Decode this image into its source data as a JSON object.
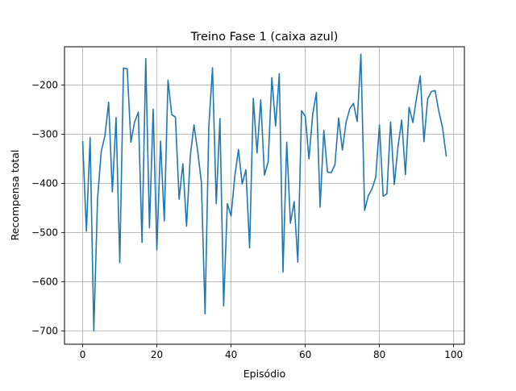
{
  "chart_data": {
    "type": "line",
    "title": "Treino Fase 1 (caixa azul)",
    "xlabel": "Episódio",
    "ylabel": "Recompensa total",
    "xlim": [
      -4.9,
      102.9
    ],
    "ylim": [
      -727,
      -122
    ],
    "xticks": [
      0,
      20,
      40,
      60,
      80,
      100
    ],
    "xtick_labels": [
      "0",
      "20",
      "40",
      "60",
      "80",
      "100"
    ],
    "yticks": [
      -700,
      -600,
      -500,
      -400,
      -300,
      -200
    ],
    "ytick_labels": [
      "−700",
      "−600",
      "−500",
      "−400",
      "−300",
      "−200"
    ],
    "grid": true,
    "line_color": "#1f77b4",
    "series": [
      {
        "x": [
          0,
          1,
          2,
          3,
          4,
          5,
          6,
          7,
          8,
          9,
          10,
          11,
          12,
          13,
          14,
          15,
          16,
          17,
          18,
          19,
          20,
          21,
          22,
          23,
          24,
          25,
          26,
          27,
          28,
          29,
          30,
          31,
          32,
          33,
          34,
          35,
          36,
          37,
          38,
          39,
          40,
          41,
          42,
          43,
          44,
          45,
          46,
          47,
          48,
          49,
          50,
          51,
          52,
          53,
          54,
          55,
          56,
          57,
          58,
          59,
          60,
          61,
          62,
          63,
          64,
          65,
          66,
          67,
          68,
          69,
          70,
          71,
          72,
          73,
          74,
          75,
          76,
          77,
          78,
          79,
          80,
          81,
          82,
          83,
          84,
          85,
          86,
          87,
          88,
          89,
          90,
          91,
          92,
          93,
          94,
          95,
          96,
          97,
          98
        ],
        "values": [
          -315,
          -497,
          -307,
          -700,
          -432,
          -335,
          -303,
          -235,
          -417,
          -266,
          -561,
          -165,
          -167,
          -316,
          -275,
          -255,
          -520,
          -146,
          -490,
          -249,
          -535,
          -314,
          -476,
          -190,
          -260,
          -265,
          -432,
          -360,
          -487,
          -345,
          -281,
          -334,
          -398,
          -665,
          -285,
          -165,
          -441,
          -268,
          -649,
          -441,
          -466,
          -386,
          -331,
          -401,
          -372,
          -531,
          -227,
          -338,
          -230,
          -383,
          -356,
          -185,
          -283,
          -177,
          -580,
          -316,
          -481,
          -437,
          -560,
          -252,
          -263,
          -350,
          -260,
          -215,
          -448,
          -292,
          -377,
          -378,
          -362,
          -267,
          -332,
          -276,
          -248,
          -237,
          -274,
          -137,
          -455,
          -425,
          -411,
          -387,
          -281,
          -426,
          -421,
          -275,
          -402,
          -325,
          -271,
          -382,
          -245,
          -276,
          -226,
          -181,
          -315,
          -228,
          -213,
          -211,
          -253,
          -286,
          -344
        ]
      }
    ]
  }
}
